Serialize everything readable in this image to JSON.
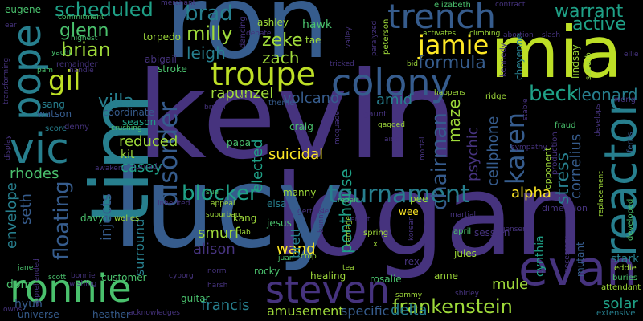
{
  "words": [
    {
      "text": "kevin",
      "color": "#46337e"
    },
    {
      "text": "logan",
      "color": "#46337e"
    },
    {
      "text": "lucy",
      "color": "#365c8d"
    },
    {
      "text": "ron",
      "color": "#365c8d"
    },
    {
      "text": "tim",
      "color": "#277f8e"
    },
    {
      "text": "mia",
      "color": "#bddf26"
    },
    {
      "text": "reactor",
      "color": "#277f8e"
    },
    {
      "text": "evan",
      "color": "#46337e"
    },
    {
      "text": "ronnie",
      "color": "#4ac16d"
    },
    {
      "text": "vic",
      "color": "#277f8e"
    },
    {
      "text": "pope",
      "color": "#277f8e"
    },
    {
      "text": "steven",
      "color": "#46337e"
    },
    {
      "text": "colony",
      "color": "#365c8d"
    },
    {
      "text": "trench",
      "color": "#365c8d"
    },
    {
      "text": "troupe",
      "color": "#bddf26"
    },
    {
      "text": "tournament",
      "color": "#277f8e"
    },
    {
      "text": "frankenstein",
      "color": "#9fda3a"
    },
    {
      "text": "karen",
      "color": "#365c8d"
    },
    {
      "text": "jamie",
      "color": "#fde725"
    },
    {
      "text": "gil",
      "color": "#bddf26"
    },
    {
      "text": "disorder",
      "color": "#365c8d"
    },
    {
      "text": "chairman",
      "color": "#365c8d"
    },
    {
      "text": "floating",
      "color": "#365c8d"
    },
    {
      "text": "blocker",
      "color": "#1fa187"
    },
    {
      "text": "warrant",
      "color": "#1fa187"
    },
    {
      "text": "active",
      "color": "#1fa187"
    },
    {
      "text": "scheduled",
      "color": "#1fa187"
    },
    {
      "text": "brad",
      "color": "#277f8e"
    },
    {
      "text": "milly",
      "color": "#9fda3a"
    },
    {
      "text": "glenn",
      "color": "#4ac16d"
    },
    {
      "text": "brian",
      "color": "#9fda3a"
    },
    {
      "text": "leigh",
      "color": "#277f8e"
    },
    {
      "text": "zeke",
      "color": "#9fda3a"
    },
    {
      "text": "zach",
      "color": "#9fda3a"
    },
    {
      "text": "formula",
      "color": "#365c8d"
    },
    {
      "text": "rapunzel",
      "color": "#9fda3a"
    },
    {
      "text": "villa",
      "color": "#277f8e"
    },
    {
      "text": "beck",
      "color": "#1fa187"
    },
    {
      "text": "leonard",
      "color": "#277f8e"
    },
    {
      "text": "volcano",
      "color": "#365c8d"
    },
    {
      "text": "amid",
      "color": "#277f8e"
    },
    {
      "text": "maze",
      "color": "#9fda3a"
    },
    {
      "text": "cellphone",
      "color": "#365c8d"
    },
    {
      "text": "psychic",
      "color": "#46337e"
    },
    {
      "text": "stress",
      "color": "#277f8e"
    },
    {
      "text": "cornelius",
      "color": "#365c8d"
    },
    {
      "text": "alpha",
      "color": "#fde725"
    },
    {
      "text": "suicidal",
      "color": "#fde725"
    },
    {
      "text": "penthouse",
      "color": "#1fa187"
    },
    {
      "text": "elected",
      "color": "#1fa187"
    },
    {
      "text": "reduced",
      "color": "#9fda3a"
    },
    {
      "text": "casey",
      "color": "#1fa187"
    },
    {
      "text": "rhodes",
      "color": "#4ac16d"
    },
    {
      "text": "envelope",
      "color": "#277f8e"
    },
    {
      "text": "seth",
      "color": "#365c8d"
    },
    {
      "text": "injects",
      "color": "#365c8d"
    },
    {
      "text": "surround",
      "color": "#277f8e"
    },
    {
      "text": "smurf",
      "color": "#9fda3a"
    },
    {
      "text": "alison",
      "color": "#46337e"
    },
    {
      "text": "wand",
      "color": "#fde725"
    },
    {
      "text": "brett",
      "color": "#277f8e"
    },
    {
      "text": "mule",
      "color": "#9fda3a"
    },
    {
      "text": "solar",
      "color": "#1fa187"
    },
    {
      "text": "stark",
      "color": "#277f8e"
    },
    {
      "text": "francis",
      "color": "#277f8e"
    },
    {
      "text": "amusement",
      "color": "#9fda3a"
    },
    {
      "text": "specific",
      "color": "#365c8d"
    },
    {
      "text": "delta",
      "color": "#277f8e"
    },
    {
      "text": "dom",
      "color": "#4ac16d"
    },
    {
      "text": "hyun",
      "color": "#365c8d"
    },
    {
      "text": "universe",
      "color": "#365c8d"
    },
    {
      "text": "heather",
      "color": "#365c8d"
    },
    {
      "text": "customer",
      "color": "#4ac16d"
    },
    {
      "text": "guitar",
      "color": "#4ac16d"
    },
    {
      "text": "rocky",
      "color": "#4ac16d"
    },
    {
      "text": "healing",
      "color": "#9fda3a"
    },
    {
      "text": "rosalie",
      "color": "#4ac16d"
    },
    {
      "text": "anne",
      "color": "#9fda3a"
    },
    {
      "text": "jules",
      "color": "#9fda3a"
    },
    {
      "text": "rex",
      "color": "#46337e"
    },
    {
      "text": "cynthia",
      "color": "#1fa187"
    },
    {
      "text": "mutant",
      "color": "#365c8d"
    },
    {
      "text": "session",
      "color": "#46337e"
    },
    {
      "text": "wee",
      "color": "#fde725"
    },
    {
      "text": "pee",
      "color": "#9fda3a"
    },
    {
      "text": "manny",
      "color": "#9fda3a"
    },
    {
      "text": "craig",
      "color": "#4ac16d"
    },
    {
      "text": "papa",
      "color": "#4ac16d"
    },
    {
      "text": "kit",
      "color": "#9fda3a"
    },
    {
      "text": "season",
      "color": "#1fa187"
    },
    {
      "text": "coordinate",
      "color": "#365c8d"
    },
    {
      "text": "watson",
      "color": "#365c8d"
    },
    {
      "text": "sang",
      "color": "#277f8e"
    },
    {
      "text": "score",
      "color": "#277f8e"
    },
    {
      "text": "denny",
      "color": "#46337e"
    },
    {
      "text": "davy",
      "color": "#4ac16d"
    },
    {
      "text": "welles",
      "color": "#9fda3a"
    },
    {
      "text": "kang",
      "color": "#9fda3a"
    },
    {
      "text": "jesus",
      "color": "#4ac16d"
    },
    {
      "text": "elsa",
      "color": "#277f8e"
    },
    {
      "text": "eugene",
      "color": "#4ac16d"
    },
    {
      "text": "hawk",
      "color": "#4ac16d"
    },
    {
      "text": "ashley",
      "color": "#9fda3a"
    },
    {
      "text": "tae",
      "color": "#9fda3a"
    },
    {
      "text": "abigail",
      "color": "#46337e"
    },
    {
      "text": "stroke",
      "color": "#4ac16d"
    },
    {
      "text": "torpedo",
      "color": "#9fda3a"
    },
    {
      "text": "dancing",
      "color": "#46337e"
    },
    {
      "text": "peterson",
      "color": "#9fda3a"
    },
    {
      "text": "lindsay",
      "color": "#9fda3a"
    },
    {
      "text": "suburb",
      "color": "#9fda3a"
    },
    {
      "text": "cheyenne",
      "color": "#277f8e"
    },
    {
      "text": "kennedy",
      "color": "#46337e"
    },
    {
      "text": "theme",
      "color": "#365c8d"
    },
    {
      "text": "fraud",
      "color": "#4ac16d"
    },
    {
      "text": "wong",
      "color": "#46337e"
    },
    {
      "text": "ferris",
      "color": "#365c8d"
    },
    {
      "text": "production",
      "color": "#46337e"
    },
    {
      "text": "opponent",
      "color": "#9fda3a"
    },
    {
      "text": "dimension",
      "color": "#46337e"
    },
    {
      "text": "developed",
      "color": "#4ac16d"
    },
    {
      "text": "eddie",
      "color": "#9fda3a"
    },
    {
      "text": "buries",
      "color": "#4ac16d"
    },
    {
      "text": "attendant",
      "color": "#9fda3a"
    },
    {
      "text": "extensive",
      "color": "#277f8e"
    },
    {
      "text": "elizabeth",
      "color": "#4ac16d"
    },
    {
      "text": "commitment",
      "color": "#4ac16d"
    },
    {
      "text": "highest",
      "color": "#4ac16d"
    },
    {
      "text": "remainder",
      "color": "#46337e"
    },
    {
      "text": "transforming",
      "color": "#46337e"
    },
    {
      "text": "merchant",
      "color": "#46337e"
    },
    {
      "text": "contract",
      "color": "#46337e"
    },
    {
      "text": "debate",
      "color": "#46337e"
    },
    {
      "text": "valley",
      "color": "#46337e"
    },
    {
      "text": "tricked",
      "color": "#46337e"
    },
    {
      "text": "paralyzed",
      "color": "#46337e"
    },
    {
      "text": "bid",
      "color": "#9fda3a"
    },
    {
      "text": "activates",
      "color": "#9fda3a"
    },
    {
      "text": "climbing",
      "color": "#9fda3a"
    },
    {
      "text": "abortion",
      "color": "#46337e"
    },
    {
      "text": "slash",
      "color": "#46337e"
    },
    {
      "text": "ridge",
      "color": "#9fda3a"
    },
    {
      "text": "happens",
      "color": "#9fda3a"
    },
    {
      "text": "stable",
      "color": "#46337e"
    },
    {
      "text": "develops",
      "color": "#46337e"
    },
    {
      "text": "brutal",
      "color": "#46337e"
    },
    {
      "text": "crushing",
      "color": "#4ac16d"
    },
    {
      "text": "awaken",
      "color": "#46337e"
    },
    {
      "text": "tornado",
      "color": "#46337e"
    },
    {
      "text": "appeal",
      "color": "#9fda3a"
    },
    {
      "text": "inherited",
      "color": "#46337e"
    },
    {
      "text": "suburban",
      "color": "#9fda3a"
    },
    {
      "text": "wishing",
      "color": "#46337e"
    },
    {
      "text": "apprehended",
      "color": "#46337e"
    },
    {
      "text": "handle",
      "color": "#46337e"
    },
    {
      "text": "display",
      "color": "#46337e"
    },
    {
      "text": "jane",
      "color": "#4ac16d"
    },
    {
      "text": "scott",
      "color": "#4ac16d"
    },
    {
      "text": "bonnie",
      "color": "#46337e"
    },
    {
      "text": "owns",
      "color": "#46337e"
    },
    {
      "text": "acknowledges",
      "color": "#46337e"
    },
    {
      "text": "cyborg",
      "color": "#46337e"
    },
    {
      "text": "harsh",
      "color": "#46337e"
    },
    {
      "text": "juan",
      "color": "#4ac16d"
    },
    {
      "text": "crop",
      "color": "#9fda3a"
    },
    {
      "text": "lab",
      "color": "#9fda3a"
    },
    {
      "text": "repair",
      "color": "#4ac16d"
    },
    {
      "text": "gertrude",
      "color": "#46337e"
    },
    {
      "text": "bunny",
      "color": "#46337e"
    },
    {
      "text": "enlist",
      "color": "#46337e"
    },
    {
      "text": "carriage",
      "color": "#9fda3a"
    },
    {
      "text": "tea",
      "color": "#9fda3a"
    },
    {
      "text": "spring",
      "color": "#9fda3a"
    },
    {
      "text": "x",
      "color": "#9fda3a"
    },
    {
      "text": "april",
      "color": "#4ac16d"
    },
    {
      "text": "martial",
      "color": "#46337e"
    },
    {
      "text": "jensen",
      "color": "#46337e"
    },
    {
      "text": "necessary",
      "color": "#46337e"
    },
    {
      "text": "replacement",
      "color": "#9fda3a"
    },
    {
      "text": "sympathy",
      "color": "#46337e"
    },
    {
      "text": "shirley",
      "color": "#46337e"
    },
    {
      "text": "sammy",
      "color": "#9fda3a"
    },
    {
      "text": "korean",
      "color": "#46337e"
    },
    {
      "text": "mortal",
      "color": "#46337e"
    },
    {
      "text": "aide",
      "color": "#46337e"
    },
    {
      "text": "gaunt",
      "color": "#46337e"
    },
    {
      "text": "gagged",
      "color": "#9fda3a"
    },
    {
      "text": "mcquade",
      "color": "#46337e"
    },
    {
      "text": "sue",
      "color": "#4ac16d"
    },
    {
      "text": "norm",
      "color": "#46337e"
    },
    {
      "text": "ear",
      "color": "#46337e"
    },
    {
      "text": "pam",
      "color": "#4ac16d"
    },
    {
      "text": "yacht",
      "color": "#4ac16d"
    },
    {
      "text": "oz",
      "color": "#46337e"
    },
    {
      "text": "ellie",
      "color": "#46337e"
    }
  ]
}
